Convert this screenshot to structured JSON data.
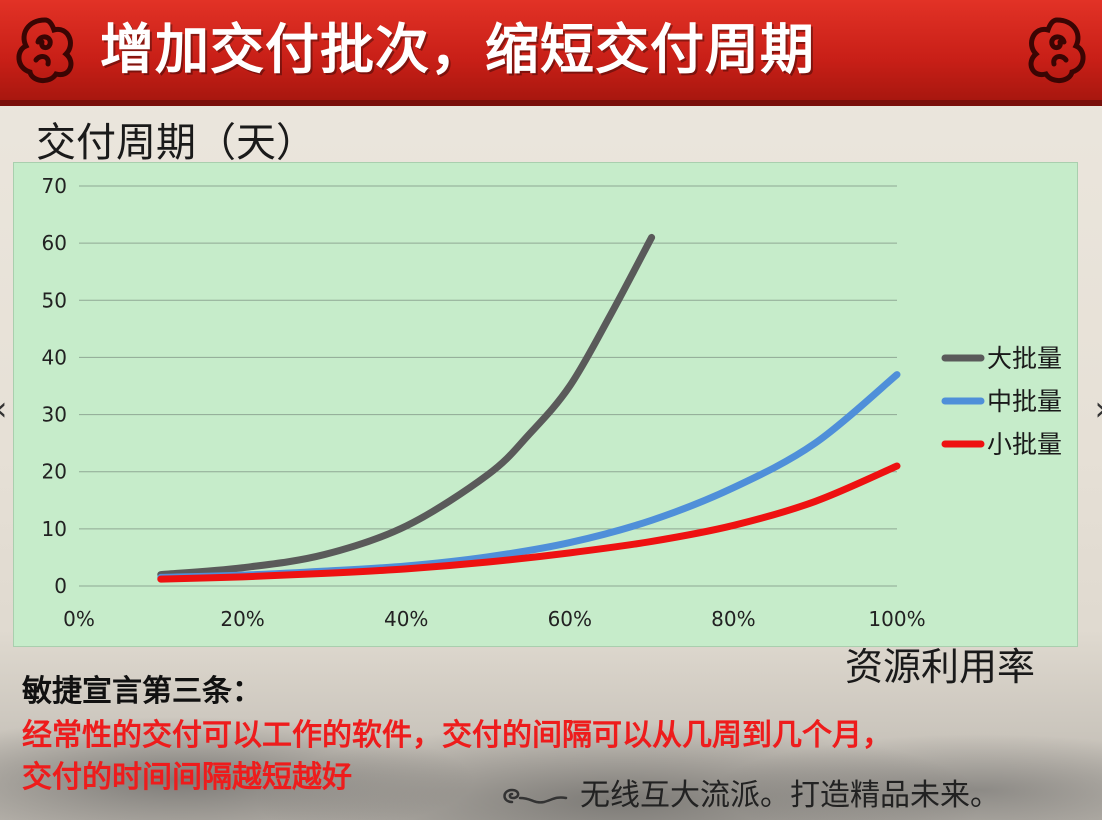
{
  "slide": {
    "title": "增加交付批次，缩短交付周期",
    "manifesto_heading": "敏捷宣言第三条：",
    "manifesto_line1": "经常性的交付可以工作的软件，交付的间隔可以从几周到几个月，",
    "manifesto_line2": "交付的时间间隔越短越好",
    "slogan": "无线互大流派。打造精品未来。"
  },
  "nav": {
    "prev_glyph": "‹",
    "next_glyph": "›"
  },
  "icons": [
    "cloud-ornament-icon",
    "chevron-left-icon",
    "chevron-right-icon",
    "swirl-icon"
  ],
  "colors": {
    "banner": "#d42a20",
    "plot_bg": "#c6ecca",
    "large_batch": "#5a5a5a",
    "medium_batch": "#4f8fd9",
    "small_batch": "#ee1111"
  },
  "chart_data": {
    "type": "line",
    "title": "",
    "ylabel": "交付周期（天）",
    "xlabel": "资源利用率",
    "xlim": [
      0,
      100
    ],
    "ylim": [
      0,
      70
    ],
    "x_ticks": [
      "0%",
      "20%",
      "40%",
      "60%",
      "80%",
      "100%"
    ],
    "y_ticks": [
      "0",
      "10",
      "20",
      "30",
      "40",
      "50",
      "60",
      "70"
    ],
    "grid": "horizontal",
    "legend_position": "right",
    "series": [
      {
        "name": "大批量",
        "color": "#5a5a5a",
        "points": [
          [
            10,
            2
          ],
          [
            20,
            3.2
          ],
          [
            30,
            5.5
          ],
          [
            40,
            10.5
          ],
          [
            50,
            19.5
          ],
          [
            55,
            26.5
          ],
          [
            60,
            35
          ],
          [
            65,
            47.5
          ],
          [
            70,
            61
          ]
        ]
      },
      {
        "name": "中批量",
        "color": "#4f8fd9",
        "points": [
          [
            10,
            1.5
          ],
          [
            20,
            1.9
          ],
          [
            30,
            2.6
          ],
          [
            40,
            3.5
          ],
          [
            50,
            5.1
          ],
          [
            60,
            7.6
          ],
          [
            70,
            11.5
          ],
          [
            80,
            17.2
          ],
          [
            90,
            25
          ],
          [
            100,
            37
          ]
        ]
      },
      {
        "name": "小批量",
        "color": "#ee1111",
        "points": [
          [
            10,
            1.2
          ],
          [
            20,
            1.6
          ],
          [
            30,
            2.2
          ],
          [
            40,
            3
          ],
          [
            50,
            4.2
          ],
          [
            60,
            5.8
          ],
          [
            70,
            7.8
          ],
          [
            80,
            10.6
          ],
          [
            90,
            14.8
          ],
          [
            100,
            21
          ]
        ]
      }
    ]
  }
}
